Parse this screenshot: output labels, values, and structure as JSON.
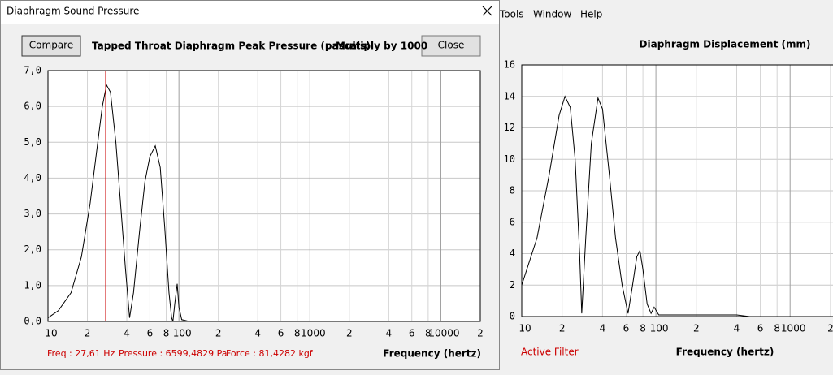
{
  "dialog": {
    "title": "Diaphragm Sound Pressure",
    "buttons": {
      "compare": "Compare",
      "close": "Close"
    },
    "chart": {
      "type": "line",
      "title": "Tapped Throat Diaphragm Peak Pressure (pascals)",
      "subtitle": "Multiply by 1000",
      "x_label": "Frequency (hertz)",
      "x_scale": "log",
      "xlim": [
        10,
        20000
      ],
      "ylim": [
        0,
        7
      ],
      "xticks": [
        10,
        {
          "value": 20,
          "label": "2"
        },
        {
          "value": 40,
          "label": "4"
        },
        {
          "value": 60,
          "label": "6"
        },
        {
          "value": 80,
          "label": "8"
        },
        100,
        {
          "value": 200,
          "label": "2"
        },
        {
          "value": 400,
          "label": "4"
        },
        {
          "value": 600,
          "label": "6"
        },
        {
          "value": 800,
          "label": "8"
        },
        1000,
        {
          "value": 2000,
          "label": "2"
        },
        {
          "value": 4000,
          "label": "4"
        },
        {
          "value": 6000,
          "label": "6"
        },
        {
          "value": 8000,
          "label": "8"
        },
        10000,
        {
          "value": 20000,
          "label": "2"
        }
      ],
      "yticks": [
        {
          "value": 0,
          "label": "0,0"
        },
        {
          "value": 1,
          "label": "1,0"
        },
        {
          "value": 2,
          "label": "2,0"
        },
        {
          "value": 3,
          "label": "3,0"
        },
        {
          "value": 4,
          "label": "4,0"
        },
        {
          "value": 5,
          "label": "5,0"
        },
        {
          "value": 6,
          "label": "6,0"
        },
        {
          "value": 7,
          "label": "7,0"
        }
      ],
      "grid": true,
      "color": "#000000",
      "x": [
        10,
        12,
        15,
        18,
        21,
        24,
        26,
        28,
        30,
        33,
        36,
        39,
        42,
        45,
        50,
        55,
        60,
        66,
        72,
        78,
        84,
        88,
        90,
        93,
        97,
        100,
        105,
        120,
        200,
        20000
      ],
      "values": [
        0.1,
        0.3,
        0.8,
        1.8,
        3.3,
        5.0,
        6.0,
        6.6,
        6.4,
        5.0,
        3.2,
        1.5,
        0.1,
        0.8,
        2.5,
        3.9,
        4.6,
        4.9,
        4.3,
        2.6,
        0.8,
        0.1,
        0,
        0.5,
        1.05,
        0.4,
        0.05,
        0,
        0,
        0
      ],
      "cursor": {
        "value": 27.61,
        "color": "#cc0000"
      },
      "readouts": [
        "Freq : 27,61 Hz",
        "Pressure : 6599,4829 Pa",
        "Force : 81,4282 kgf"
      ]
    }
  },
  "main_window": {
    "menu": [
      "Tools",
      "Window",
      "Help"
    ],
    "status": "Active Filter",
    "chart": {
      "type": "line",
      "title": "Diaphragm Displacement (mm)",
      "x_label": "Frequency (hertz)",
      "x_scale": "log",
      "xlim": [
        10,
        20000
      ],
      "ylim": [
        0,
        16
      ],
      "xticks": [
        10,
        {
          "value": 20,
          "label": "2"
        },
        {
          "value": 40,
          "label": "4"
        },
        {
          "value": 60,
          "label": "6"
        },
        {
          "value": 80,
          "label": "8"
        },
        100,
        {
          "value": 200,
          "label": "2"
        },
        {
          "value": 400,
          "label": "4"
        },
        {
          "value": 600,
          "label": "6"
        },
        {
          "value": 800,
          "label": "8"
        },
        1000,
        {
          "value": 2000,
          "label": "2"
        }
      ],
      "yticks": [
        0,
        2,
        4,
        6,
        8,
        10,
        12,
        14,
        16
      ],
      "grid": true,
      "color": "#000000",
      "x": [
        10,
        13,
        16,
        19,
        21,
        23,
        25,
        27,
        28,
        30,
        33,
        37,
        40,
        45,
        50,
        56,
        62,
        67,
        72,
        76,
        80,
        86,
        92,
        97,
        105,
        130,
        400,
        500,
        20000
      ],
      "values": [
        2,
        5,
        9,
        12.8,
        14,
        13.3,
        10,
        4,
        0.2,
        5,
        11,
        13.9,
        13.2,
        9,
        5,
        2,
        0.2,
        2,
        3.8,
        4.2,
        3,
        0.8,
        0.2,
        0.6,
        0.1,
        0.1,
        0.1,
        0,
        0
      ]
    }
  }
}
